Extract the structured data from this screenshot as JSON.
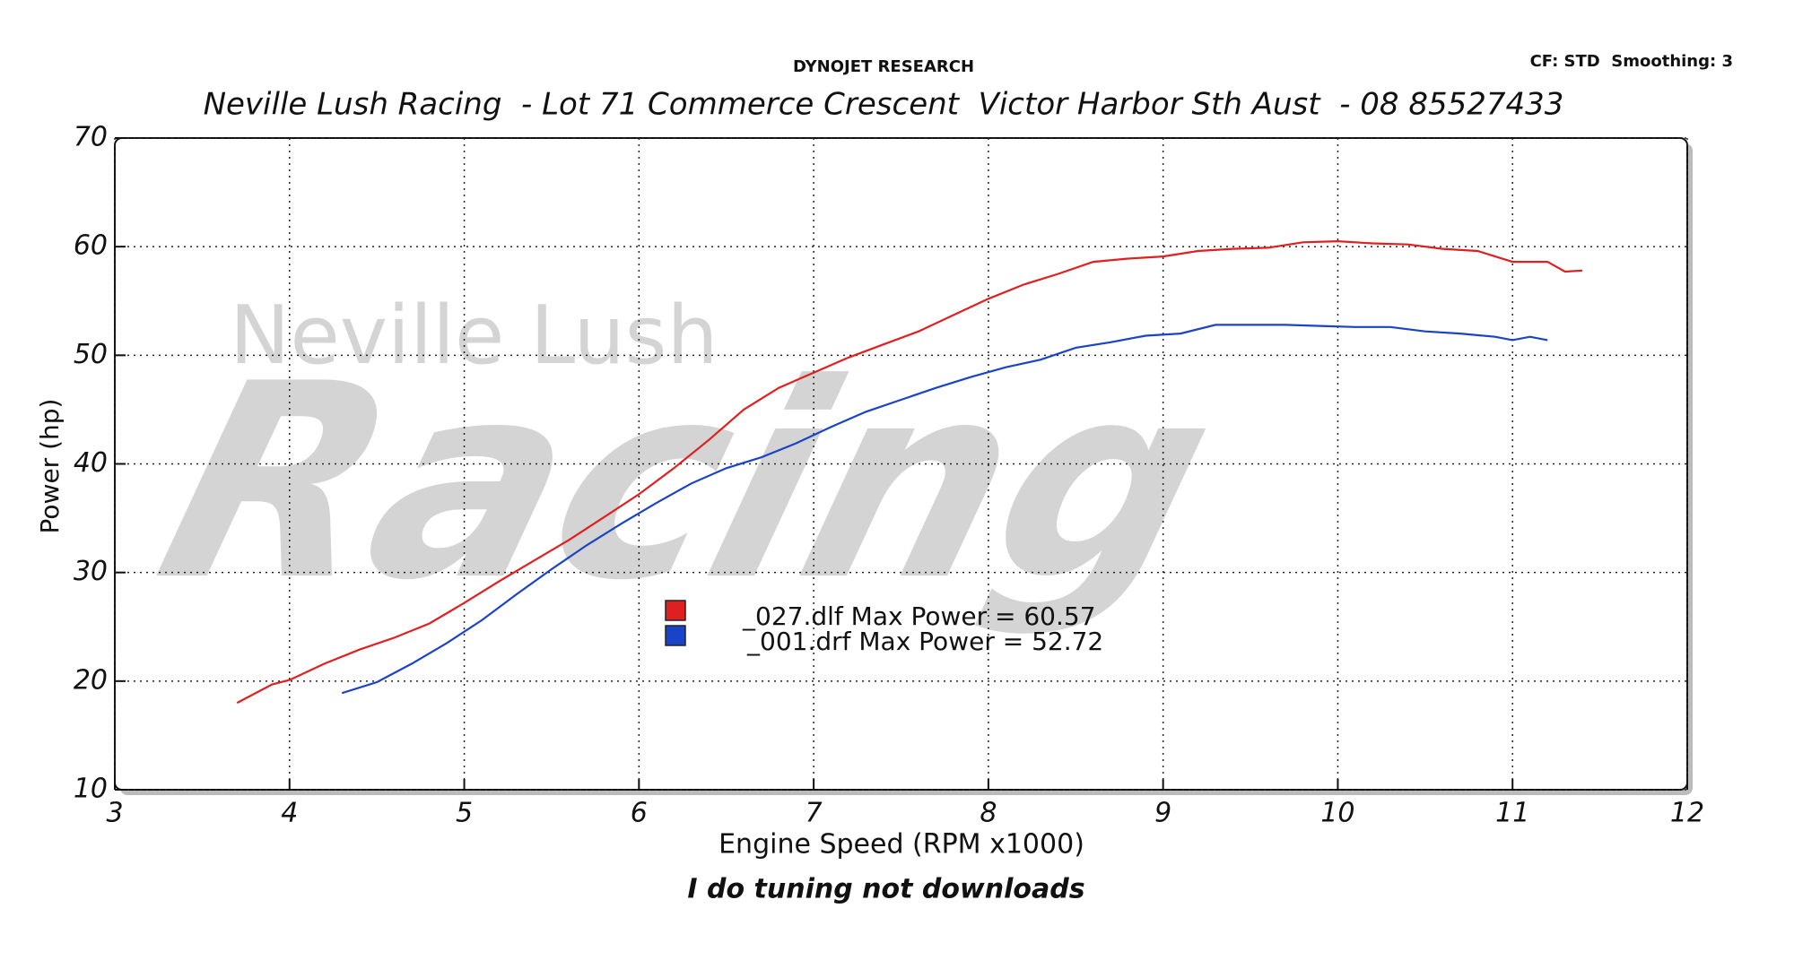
{
  "chart_data": {
    "type": "line",
    "header": "DYNOJET RESEARCH",
    "settings_note": "CF: STD  Smoothing: 3",
    "title": "Neville Lush Racing  - Lot 71 Commerce Crescent  Victor Harbor Sth Aust  - 08 85527433",
    "watermark": [
      "Neville Lush",
      "Racing"
    ],
    "x_label": "Engine Speed (RPM x1000)",
    "y_label": "Power (hp)",
    "footer": "I do tuning not downloads",
    "xlim": [
      3,
      12
    ],
    "xticks": [
      3,
      4,
      5,
      6,
      7,
      8,
      9,
      10,
      11,
      12
    ],
    "ylim": [
      10,
      70
    ],
    "yticks": [
      10,
      20,
      30,
      40,
      50,
      60,
      70
    ],
    "grid": true,
    "series": [
      {
        "name": "_027.dlf Max Power = 60.57",
        "color": "#e02020",
        "x": [
          3.7,
          3.9,
          4.0,
          4.2,
          4.4,
          4.6,
          4.8,
          5.0,
          5.2,
          5.4,
          5.6,
          5.8,
          6.0,
          6.2,
          6.4,
          6.6,
          6.8,
          7.0,
          7.2,
          7.4,
          7.6,
          7.8,
          8.0,
          8.2,
          8.4,
          8.6,
          8.8,
          9.0,
          9.2,
          9.4,
          9.6,
          9.8,
          10.0,
          10.2,
          10.4,
          10.6,
          10.8,
          11.0,
          11.2,
          11.3,
          11.4
        ],
        "values": [
          18,
          19.7,
          20.1,
          21.6,
          22.9,
          24,
          25.3,
          27.2,
          29.2,
          31.1,
          33,
          35.1,
          37.2,
          39.6,
          42.2,
          45,
          47,
          48.4,
          49.8,
          51,
          52.2,
          53.7,
          55.2,
          56.5,
          57.5,
          58.6,
          58.9,
          59.1,
          59.6,
          59.8,
          59.9,
          60.4,
          60.5,
          60.3,
          60.2,
          59.8,
          59.6,
          58.6,
          58.6,
          57.7,
          57.8
        ]
      },
      {
        "name": "_001.drf Max Power = 52.72",
        "color": "#1a44c8",
        "x": [
          4.3,
          4.5,
          4.7,
          4.9,
          5.1,
          5.3,
          5.5,
          5.7,
          5.9,
          6.1,
          6.3,
          6.5,
          6.7,
          6.9,
          7.1,
          7.3,
          7.5,
          7.7,
          7.9,
          8.1,
          8.3,
          8.5,
          8.7,
          8.9,
          9.1,
          9.3,
          9.5,
          9.7,
          9.9,
          10.1,
          10.3,
          10.5,
          10.7,
          10.9,
          11.0,
          11.1,
          11.2
        ],
        "values": [
          18.9,
          19.9,
          21.6,
          23.5,
          25.6,
          28,
          30.3,
          32.5,
          34.5,
          36.4,
          38.2,
          39.6,
          40.6,
          41.9,
          43.4,
          44.8,
          45.9,
          47,
          48,
          48.9,
          49.6,
          50.7,
          51.2,
          51.8,
          52,
          52.8,
          52.8,
          52.8,
          52.7,
          52.6,
          52.6,
          52.2,
          52,
          51.7,
          51.4,
          51.7,
          51.4
        ]
      }
    ]
  }
}
